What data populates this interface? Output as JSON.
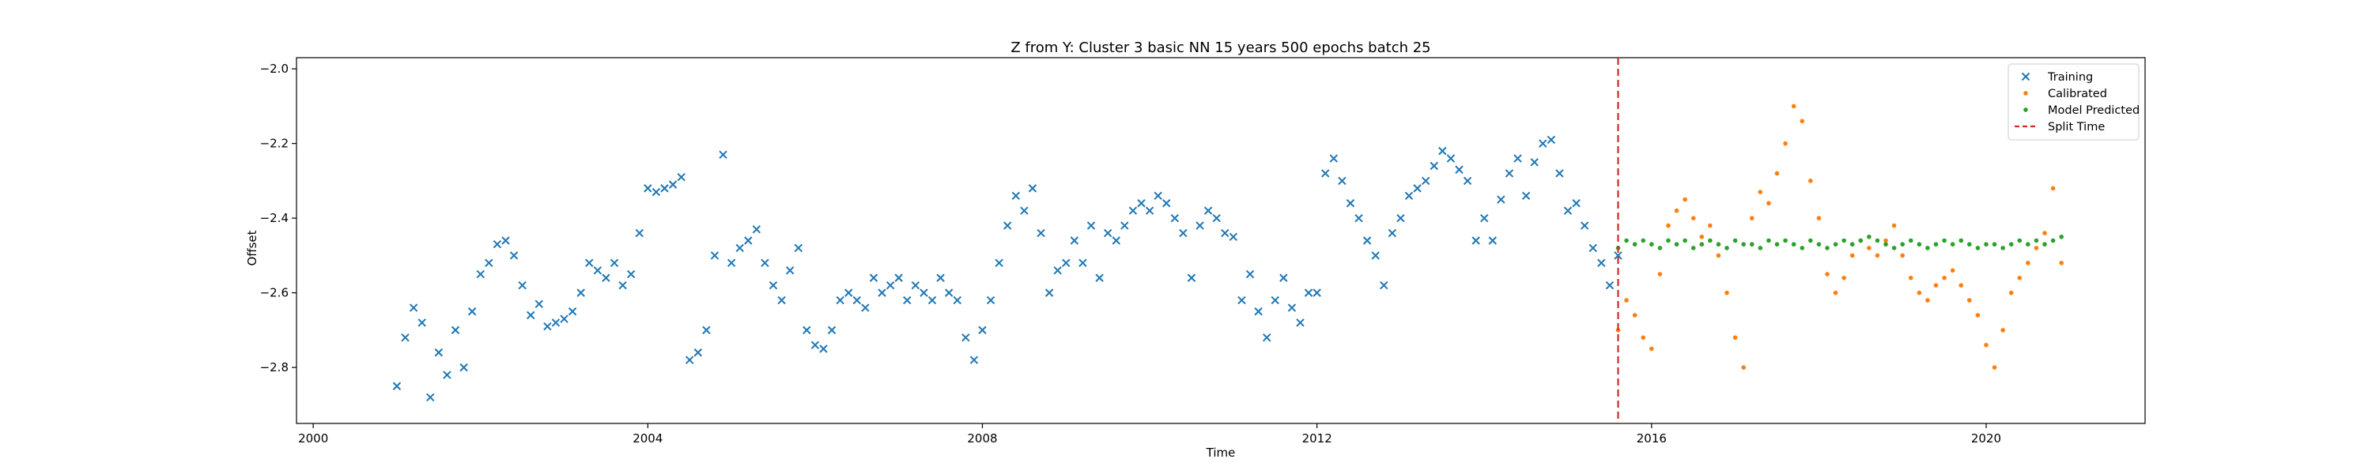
{
  "chart_data": {
    "type": "scatter",
    "title": "Z from Y: Cluster 3 basic NN 15 years 500 epochs batch 25",
    "xlabel": "Time",
    "ylabel": "Offset",
    "xlim": [
      1999.8,
      2021.9
    ],
    "ylim": [
      -2.95,
      -1.97
    ],
    "x_ticks": [
      2000,
      2004,
      2008,
      2012,
      2016,
      2020
    ],
    "y_ticks": [
      -2.8,
      -2.6,
      -2.4,
      -2.2,
      -2.0
    ],
    "y_tick_labels": [
      "−2.8",
      "−2.6",
      "−2.4",
      "−2.2",
      "−2.0"
    ],
    "grid": false,
    "legend_position": "top-right",
    "split_time": 2015.6,
    "series": [
      {
        "name": "Training",
        "marker": "x",
        "color": "#1f77b4",
        "x": [
          2001.0,
          2001.1,
          2001.2,
          2001.3,
          2001.4,
          2001.5,
          2001.6,
          2001.7,
          2001.8,
          2001.9,
          2002.0,
          2002.1,
          2002.2,
          2002.3,
          2002.4,
          2002.5,
          2002.6,
          2002.7,
          2002.8,
          2002.9,
          2003.0,
          2003.1,
          2003.2,
          2003.3,
          2003.4,
          2003.5,
          2003.6,
          2003.7,
          2003.8,
          2003.9,
          2004.0,
          2004.1,
          2004.2,
          2004.3,
          2004.4,
          2004.5,
          2004.6,
          2004.7,
          2004.8,
          2004.9,
          2005.0,
          2005.1,
          2005.2,
          2005.3,
          2005.4,
          2005.5,
          2005.6,
          2005.7,
          2005.8,
          2005.9,
          2006.0,
          2006.1,
          2006.2,
          2006.3,
          2006.4,
          2006.5,
          2006.6,
          2006.7,
          2006.8,
          2006.9,
          2007.0,
          2007.1,
          2007.2,
          2007.3,
          2007.4,
          2007.5,
          2007.6,
          2007.7,
          2007.8,
          2007.9,
          2008.0,
          2008.1,
          2008.2,
          2008.3,
          2008.4,
          2008.5,
          2008.6,
          2008.7,
          2008.8,
          2008.9,
          2009.0,
          2009.1,
          2009.2,
          2009.3,
          2009.4,
          2009.5,
          2009.6,
          2009.7,
          2009.8,
          2009.9,
          2010.0,
          2010.1,
          2010.2,
          2010.3,
          2010.4,
          2010.5,
          2010.6,
          2010.7,
          2010.8,
          2010.9,
          2011.0,
          2011.1,
          2011.2,
          2011.3,
          2011.4,
          2011.5,
          2011.6,
          2011.7,
          2011.8,
          2011.9,
          2012.0,
          2012.1,
          2012.2,
          2012.3,
          2012.4,
          2012.5,
          2012.6,
          2012.7,
          2012.8,
          2012.9,
          2013.0,
          2013.1,
          2013.2,
          2013.3,
          2013.4,
          2013.5,
          2013.6,
          2013.7,
          2013.8,
          2013.9,
          2014.0,
          2014.1,
          2014.2,
          2014.3,
          2014.4,
          2014.5,
          2014.6,
          2014.7,
          2014.8,
          2014.9,
          2015.0,
          2015.1,
          2015.2,
          2015.3,
          2015.4,
          2015.5,
          2015.6
        ],
        "y": [
          -2.85,
          -2.72,
          -2.64,
          -2.68,
          -2.88,
          -2.76,
          -2.82,
          -2.7,
          -2.8,
          -2.65,
          -2.55,
          -2.52,
          -2.47,
          -2.46,
          -2.5,
          -2.58,
          -2.66,
          -2.63,
          -2.69,
          -2.68,
          -2.67,
          -2.65,
          -2.6,
          -2.52,
          -2.54,
          -2.56,
          -2.52,
          -2.58,
          -2.55,
          -2.44,
          -2.32,
          -2.33,
          -2.32,
          -2.31,
          -2.29,
          -2.78,
          -2.76,
          -2.7,
          -2.5,
          -2.23,
          -2.52,
          -2.48,
          -2.46,
          -2.43,
          -2.52,
          -2.58,
          -2.62,
          -2.54,
          -2.48,
          -2.7,
          -2.74,
          -2.75,
          -2.7,
          -2.62,
          -2.6,
          -2.62,
          -2.64,
          -2.56,
          -2.6,
          -2.58,
          -2.56,
          -2.62,
          -2.58,
          -2.6,
          -2.62,
          -2.56,
          -2.6,
          -2.62,
          -2.72,
          -2.78,
          -2.7,
          -2.62,
          -2.52,
          -2.42,
          -2.34,
          -2.38,
          -2.32,
          -2.44,
          -2.6,
          -2.54,
          -2.52,
          -2.46,
          -2.52,
          -2.42,
          -2.56,
          -2.44,
          -2.46,
          -2.42,
          -2.38,
          -2.36,
          -2.38,
          -2.34,
          -2.36,
          -2.4,
          -2.44,
          -2.56,
          -2.42,
          -2.38,
          -2.4,
          -2.44,
          -2.45,
          -2.62,
          -2.55,
          -2.65,
          -2.72,
          -2.62,
          -2.56,
          -2.64,
          -2.68,
          -2.6,
          -2.6,
          -2.28,
          -2.24,
          -2.3,
          -2.36,
          -2.4,
          -2.46,
          -2.5,
          -2.58,
          -2.44,
          -2.4,
          -2.34,
          -2.32,
          -2.3,
          -2.26,
          -2.22,
          -2.24,
          -2.27,
          -2.3,
          -2.46,
          -2.4,
          -2.46,
          -2.35,
          -2.28,
          -2.24,
          -2.34,
          -2.25,
          -2.2,
          -2.19,
          -2.28,
          -2.38,
          -2.36,
          -2.42,
          -2.48,
          -2.52,
          -2.58,
          -2.5
        ]
      },
      {
        "name": "Calibrated",
        "marker": "dot",
        "color": "#ff7f0e",
        "x": [
          2015.6,
          2015.7,
          2015.8,
          2015.9,
          2016.0,
          2016.1,
          2016.2,
          2016.3,
          2016.4,
          2016.5,
          2016.6,
          2016.7,
          2016.8,
          2016.9,
          2017.0,
          2017.1,
          2017.2,
          2017.3,
          2017.4,
          2017.5,
          2017.6,
          2017.7,
          2017.8,
          2017.9,
          2018.0,
          2018.1,
          2018.2,
          2018.3,
          2018.4,
          2018.5,
          2018.6,
          2018.7,
          2018.8,
          2018.9,
          2019.0,
          2019.1,
          2019.2,
          2019.3,
          2019.4,
          2019.5,
          2019.6,
          2019.7,
          2019.8,
          2019.9,
          2020.0,
          2020.1,
          2020.2,
          2020.3,
          2020.4,
          2020.5,
          2020.6,
          2020.7,
          2020.8,
          2020.9
        ],
        "y": [
          -2.7,
          -2.62,
          -2.66,
          -2.72,
          -2.75,
          -2.55,
          -2.42,
          -2.38,
          -2.35,
          -2.4,
          -2.45,
          -2.42,
          -2.5,
          -2.6,
          -2.72,
          -2.8,
          -2.4,
          -2.33,
          -2.36,
          -2.28,
          -2.2,
          -2.1,
          -2.14,
          -2.3,
          -2.4,
          -2.55,
          -2.6,
          -2.56,
          -2.5,
          -2.46,
          -2.48,
          -2.5,
          -2.46,
          -2.42,
          -2.5,
          -2.56,
          -2.6,
          -2.62,
          -2.58,
          -2.56,
          -2.54,
          -2.58,
          -2.62,
          -2.66,
          -2.74,
          -2.8,
          -2.7,
          -2.6,
          -2.56,
          -2.52,
          -2.48,
          -2.44,
          -2.32,
          -2.52
        ]
      },
      {
        "name": "Model Predicted",
        "marker": "dot",
        "color": "#2ca02c",
        "x": [
          2015.6,
          2015.7,
          2015.8,
          2015.9,
          2016.0,
          2016.1,
          2016.2,
          2016.3,
          2016.4,
          2016.5,
          2016.6,
          2016.7,
          2016.8,
          2016.9,
          2017.0,
          2017.1,
          2017.2,
          2017.3,
          2017.4,
          2017.5,
          2017.6,
          2017.7,
          2017.8,
          2017.9,
          2018.0,
          2018.1,
          2018.2,
          2018.3,
          2018.4,
          2018.5,
          2018.6,
          2018.7,
          2018.8,
          2018.9,
          2019.0,
          2019.1,
          2019.2,
          2019.3,
          2019.4,
          2019.5,
          2019.6,
          2019.7,
          2019.8,
          2019.9,
          2020.0,
          2020.1,
          2020.2,
          2020.3,
          2020.4,
          2020.5,
          2020.6,
          2020.7,
          2020.8,
          2020.9
        ],
        "y": [
          -2.48,
          -2.46,
          -2.47,
          -2.46,
          -2.47,
          -2.48,
          -2.46,
          -2.47,
          -2.46,
          -2.48,
          -2.47,
          -2.46,
          -2.47,
          -2.48,
          -2.46,
          -2.47,
          -2.47,
          -2.48,
          -2.46,
          -2.47,
          -2.46,
          -2.47,
          -2.48,
          -2.46,
          -2.47,
          -2.48,
          -2.47,
          -2.46,
          -2.47,
          -2.46,
          -2.45,
          -2.46,
          -2.47,
          -2.48,
          -2.47,
          -2.46,
          -2.47,
          -2.48,
          -2.47,
          -2.46,
          -2.47,
          -2.46,
          -2.47,
          -2.48,
          -2.47,
          -2.47,
          -2.48,
          -2.47,
          -2.46,
          -2.47,
          -2.46,
          -2.47,
          -2.46,
          -2.45
        ]
      }
    ],
    "reference_lines": [
      {
        "name": "Split Time",
        "orientation": "vertical",
        "x": 2015.6,
        "color": "#d62728",
        "style": "dashed"
      }
    ]
  }
}
